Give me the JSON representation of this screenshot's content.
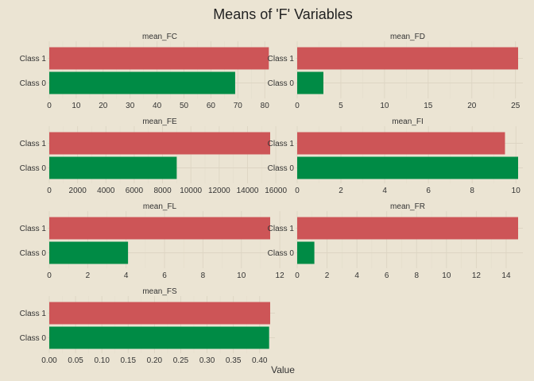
{
  "colors": {
    "background": "#ebe4d3",
    "class_1": "#cd5557",
    "class_0": "#008b45"
  },
  "chart_data": {
    "type": "bar",
    "orientation": "horizontal",
    "title": "Means of 'F' Variables",
    "xlabel": "Value",
    "ylabel": "",
    "categories": [
      "Class 1",
      "Class 0"
    ],
    "grid": true,
    "legend": "none",
    "facets": [
      {
        "name": "mean_FC",
        "xlim": [
          0,
          82
        ],
        "ticks": [
          0,
          10,
          20,
          30,
          40,
          50,
          60,
          70,
          80
        ],
        "tick_labels": [
          "0",
          "10",
          "20",
          "30",
          "40",
          "50",
          "60",
          "70",
          "80"
        ],
        "values": [
          81.5,
          69
        ]
      },
      {
        "name": "mean_FD",
        "xlim": [
          0,
          25.3
        ],
        "ticks": [
          0,
          5,
          10,
          15,
          20,
          25
        ],
        "tick_labels": [
          "0",
          "5",
          "10",
          "15",
          "20",
          "25"
        ],
        "values": [
          25.3,
          3
        ]
      },
      {
        "name": "mean_FE",
        "xlim": [
          0,
          15600
        ],
        "ticks": [
          0,
          2000,
          4000,
          6000,
          8000,
          10000,
          12000,
          14000,
          16000
        ],
        "tick_labels": [
          "0",
          "2000",
          "4000",
          "6000",
          "8000",
          "10000",
          "12000",
          "14000",
          "16000"
        ],
        "values": [
          15600,
          9000
        ]
      },
      {
        "name": "mean_FI",
        "xlim": [
          0,
          10.1
        ],
        "ticks": [
          0,
          2,
          4,
          6,
          8,
          10
        ],
        "tick_labels": [
          "0",
          "2",
          "4",
          "6",
          "8",
          "10"
        ],
        "values": [
          9.5,
          10.1
        ]
      },
      {
        "name": "mean_FL",
        "xlim": [
          0,
          11.5
        ],
        "ticks": [
          0,
          2,
          4,
          6,
          8,
          10,
          12
        ],
        "tick_labels": [
          "0",
          "2",
          "4",
          "6",
          "8",
          "10",
          "12"
        ],
        "values": [
          11.5,
          4.1
        ]
      },
      {
        "name": "mean_FR",
        "xlim": [
          0,
          14.8
        ],
        "ticks": [
          0,
          2,
          4,
          6,
          8,
          10,
          12,
          14
        ],
        "tick_labels": [
          "0",
          "2",
          "4",
          "6",
          "8",
          "10",
          "12",
          "14"
        ],
        "values": [
          14.8,
          1.15
        ]
      },
      {
        "name": "mean_FS",
        "xlim": [
          0,
          0.42
        ],
        "ticks": [
          0,
          0.05,
          0.1,
          0.15,
          0.2,
          0.25,
          0.3,
          0.35,
          0.4
        ],
        "tick_labels": [
          "0.00",
          "0.05",
          "0.10",
          "0.15",
          "0.20",
          "0.25",
          "0.30",
          "0.35",
          "0.40"
        ],
        "values": [
          0.42,
          0.418
        ]
      }
    ]
  }
}
